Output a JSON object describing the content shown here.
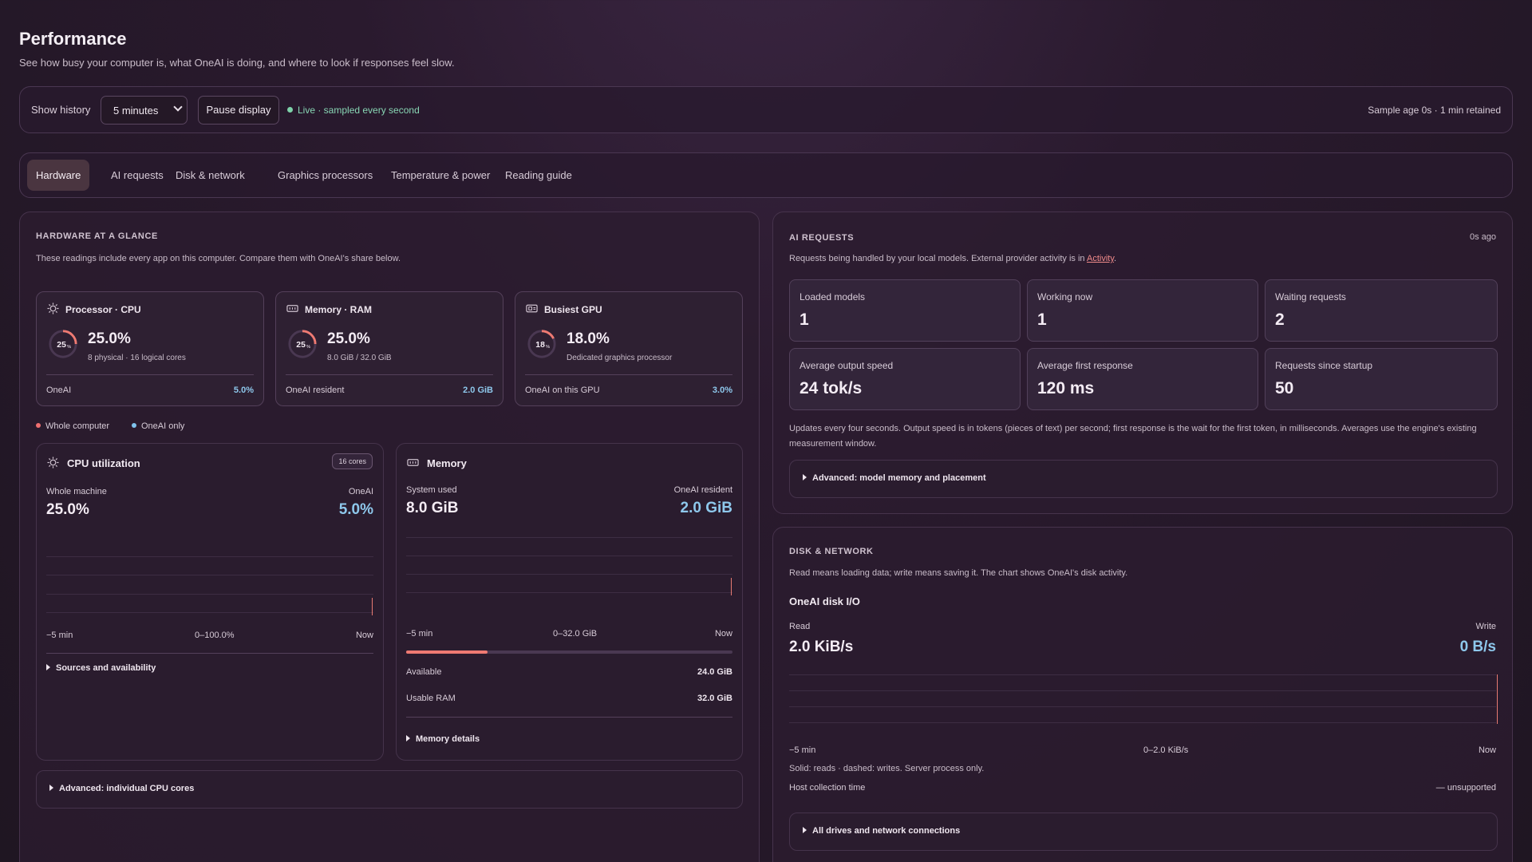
{
  "header": {
    "title": "Performance",
    "subtitle": "See how busy your computer is, what OneAI is doing, and where to look if responses feel slow."
  },
  "toolbar": {
    "history_label": "Show history",
    "history_value": "5 minutes",
    "pause_label": "Pause display",
    "live_text": "Live · sampled every second",
    "sample_age": "Sample age 0s · 1 min retained"
  },
  "tabs": [
    {
      "label": "Hardware",
      "active": true
    },
    {
      "label": "AI requests"
    },
    {
      "label": "Disk & network"
    },
    {
      "label": "Graphics processors"
    },
    {
      "label": "Temperature & power"
    },
    {
      "label": "Reading guide"
    }
  ],
  "hardware": {
    "title": "HARDWARE AT A GLANCE",
    "description": "These readings include every app on this computer. Compare them with OneAI's share below.",
    "cards": [
      {
        "title": "Processor · CPU",
        "icon": "cpu-icon",
        "gauge_label": "25",
        "gauge_unit": "%",
        "gauge_fraction": 0.25,
        "value": "25.0%",
        "detail": "8 physical · 16 logical cores",
        "footer_label": "OneAI",
        "footer_value": "5.0%"
      },
      {
        "title": "Memory · RAM",
        "icon": "memory-icon",
        "gauge_label": "25",
        "gauge_unit": "%",
        "gauge_fraction": 0.25,
        "value": "25.0%",
        "detail": "8.0 GiB / 32.0 GiB",
        "footer_label": "OneAI resident",
        "footer_value": "2.0 GiB"
      },
      {
        "title": "Busiest GPU",
        "icon": "gpu-icon",
        "gauge_label": "18",
        "gauge_unit": "%",
        "gauge_fraction": 0.18,
        "value": "18.0%",
        "detail": "Dedicated graphics processor",
        "footer_label": "OneAI on this GPU",
        "footer_value": "3.0%"
      }
    ],
    "legend": {
      "whole": "Whole computer",
      "oneai": "OneAI only",
      "whole_color": "#ef6f6f",
      "oneai_color": "#7fc3ec"
    },
    "cpu": {
      "title": "CPU utilization",
      "badge": "16 cores",
      "left_label": "Whole machine",
      "right_label": "OneAI",
      "left_value": "25.0%",
      "right_value": "5.0%",
      "axis_left": "−5 min",
      "axis_mid": "0–100.0%",
      "axis_right": "Now",
      "sources": "Sources and availability"
    },
    "memory": {
      "title": "Memory",
      "left_label": "System used",
      "right_label": "OneAI resident",
      "left_value": "8.0 GiB",
      "right_value": "2.0 GiB",
      "axis_left": "−5 min",
      "axis_mid": "0–32.0 GiB",
      "axis_right": "Now",
      "usage_fraction": 0.25,
      "available_label": "Available",
      "available_value": "24.0 GiB",
      "usable_label": "Usable RAM",
      "usable_value": "32.0 GiB",
      "details": "Memory details"
    },
    "advanced_cores": "Advanced: individual CPU cores"
  },
  "ai_requests": {
    "title": "AI REQUESTS",
    "age": "0s ago",
    "description_prefix": "Requests being handled by your local models. External provider activity is in ",
    "description_link": "Activity",
    "description_suffix": ".",
    "stats": [
      {
        "label": "Loaded models",
        "value": "1"
      },
      {
        "label": "Working now",
        "value": "1"
      },
      {
        "label": "Waiting requests",
        "value": "2"
      },
      {
        "label": "Average output speed",
        "value": "24 tok/s"
      },
      {
        "label": "Average first response",
        "value": "120 ms"
      },
      {
        "label": "Requests since startup",
        "value": "50"
      }
    ],
    "note": "Updates every four seconds. Output speed is in tokens (pieces of text) per second; first response is the wait for the first token, in milliseconds. Averages use the engine's existing measurement window.",
    "advanced": "Advanced: model memory and placement"
  },
  "disk": {
    "title": "DISK & NETWORK",
    "description": "Read means loading data; write means saving it. The chart shows OneAI's disk activity.",
    "chart_title": "OneAI disk I/O",
    "read_label": "Read",
    "write_label": "Write",
    "read_value": "2.0 KiB/s",
    "write_value": "0 B/s",
    "axis_left": "−5 min",
    "axis_mid": "0–2.0 KiB/s",
    "axis_right": "Now",
    "legend_note": "Solid: reads · dashed: writes. Server process only.",
    "host_label": "Host collection time",
    "host_value": "— unsupported",
    "drives": "All drives and network connections"
  }
}
